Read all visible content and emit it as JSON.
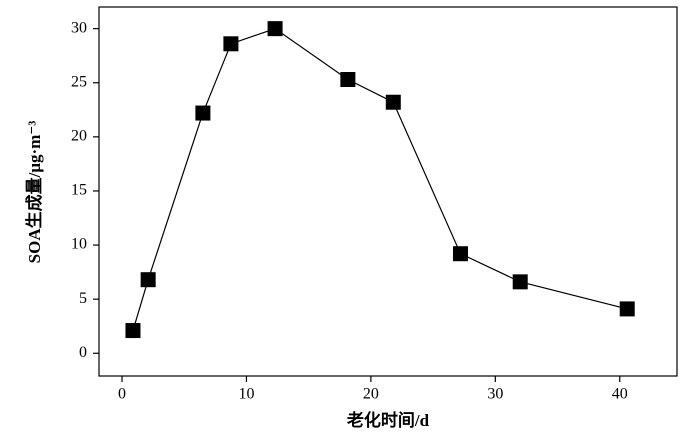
{
  "chart_data": {
    "type": "line",
    "marker": "square",
    "color": "#000000",
    "x": [
      0.88,
      2.1,
      6.5,
      8.75,
      12.3,
      18.15,
      21.8,
      27.2,
      32.0,
      40.6
    ],
    "values": [
      2.1,
      6.8,
      22.2,
      28.6,
      30.0,
      25.3,
      23.2,
      9.2,
      6.6,
      4.1
    ],
    "xlabel": "老化时间/d",
    "ylabel": "SOA生成量/μg·m⁻³",
    "xlim": [
      -1.85,
      44.6
    ],
    "xticks": [
      0,
      10,
      20,
      30,
      40
    ],
    "ylim": [
      -2.1,
      32.0
    ],
    "yticks": [
      0,
      5,
      10,
      15,
      20,
      25,
      30
    ],
    "grid": false
  }
}
